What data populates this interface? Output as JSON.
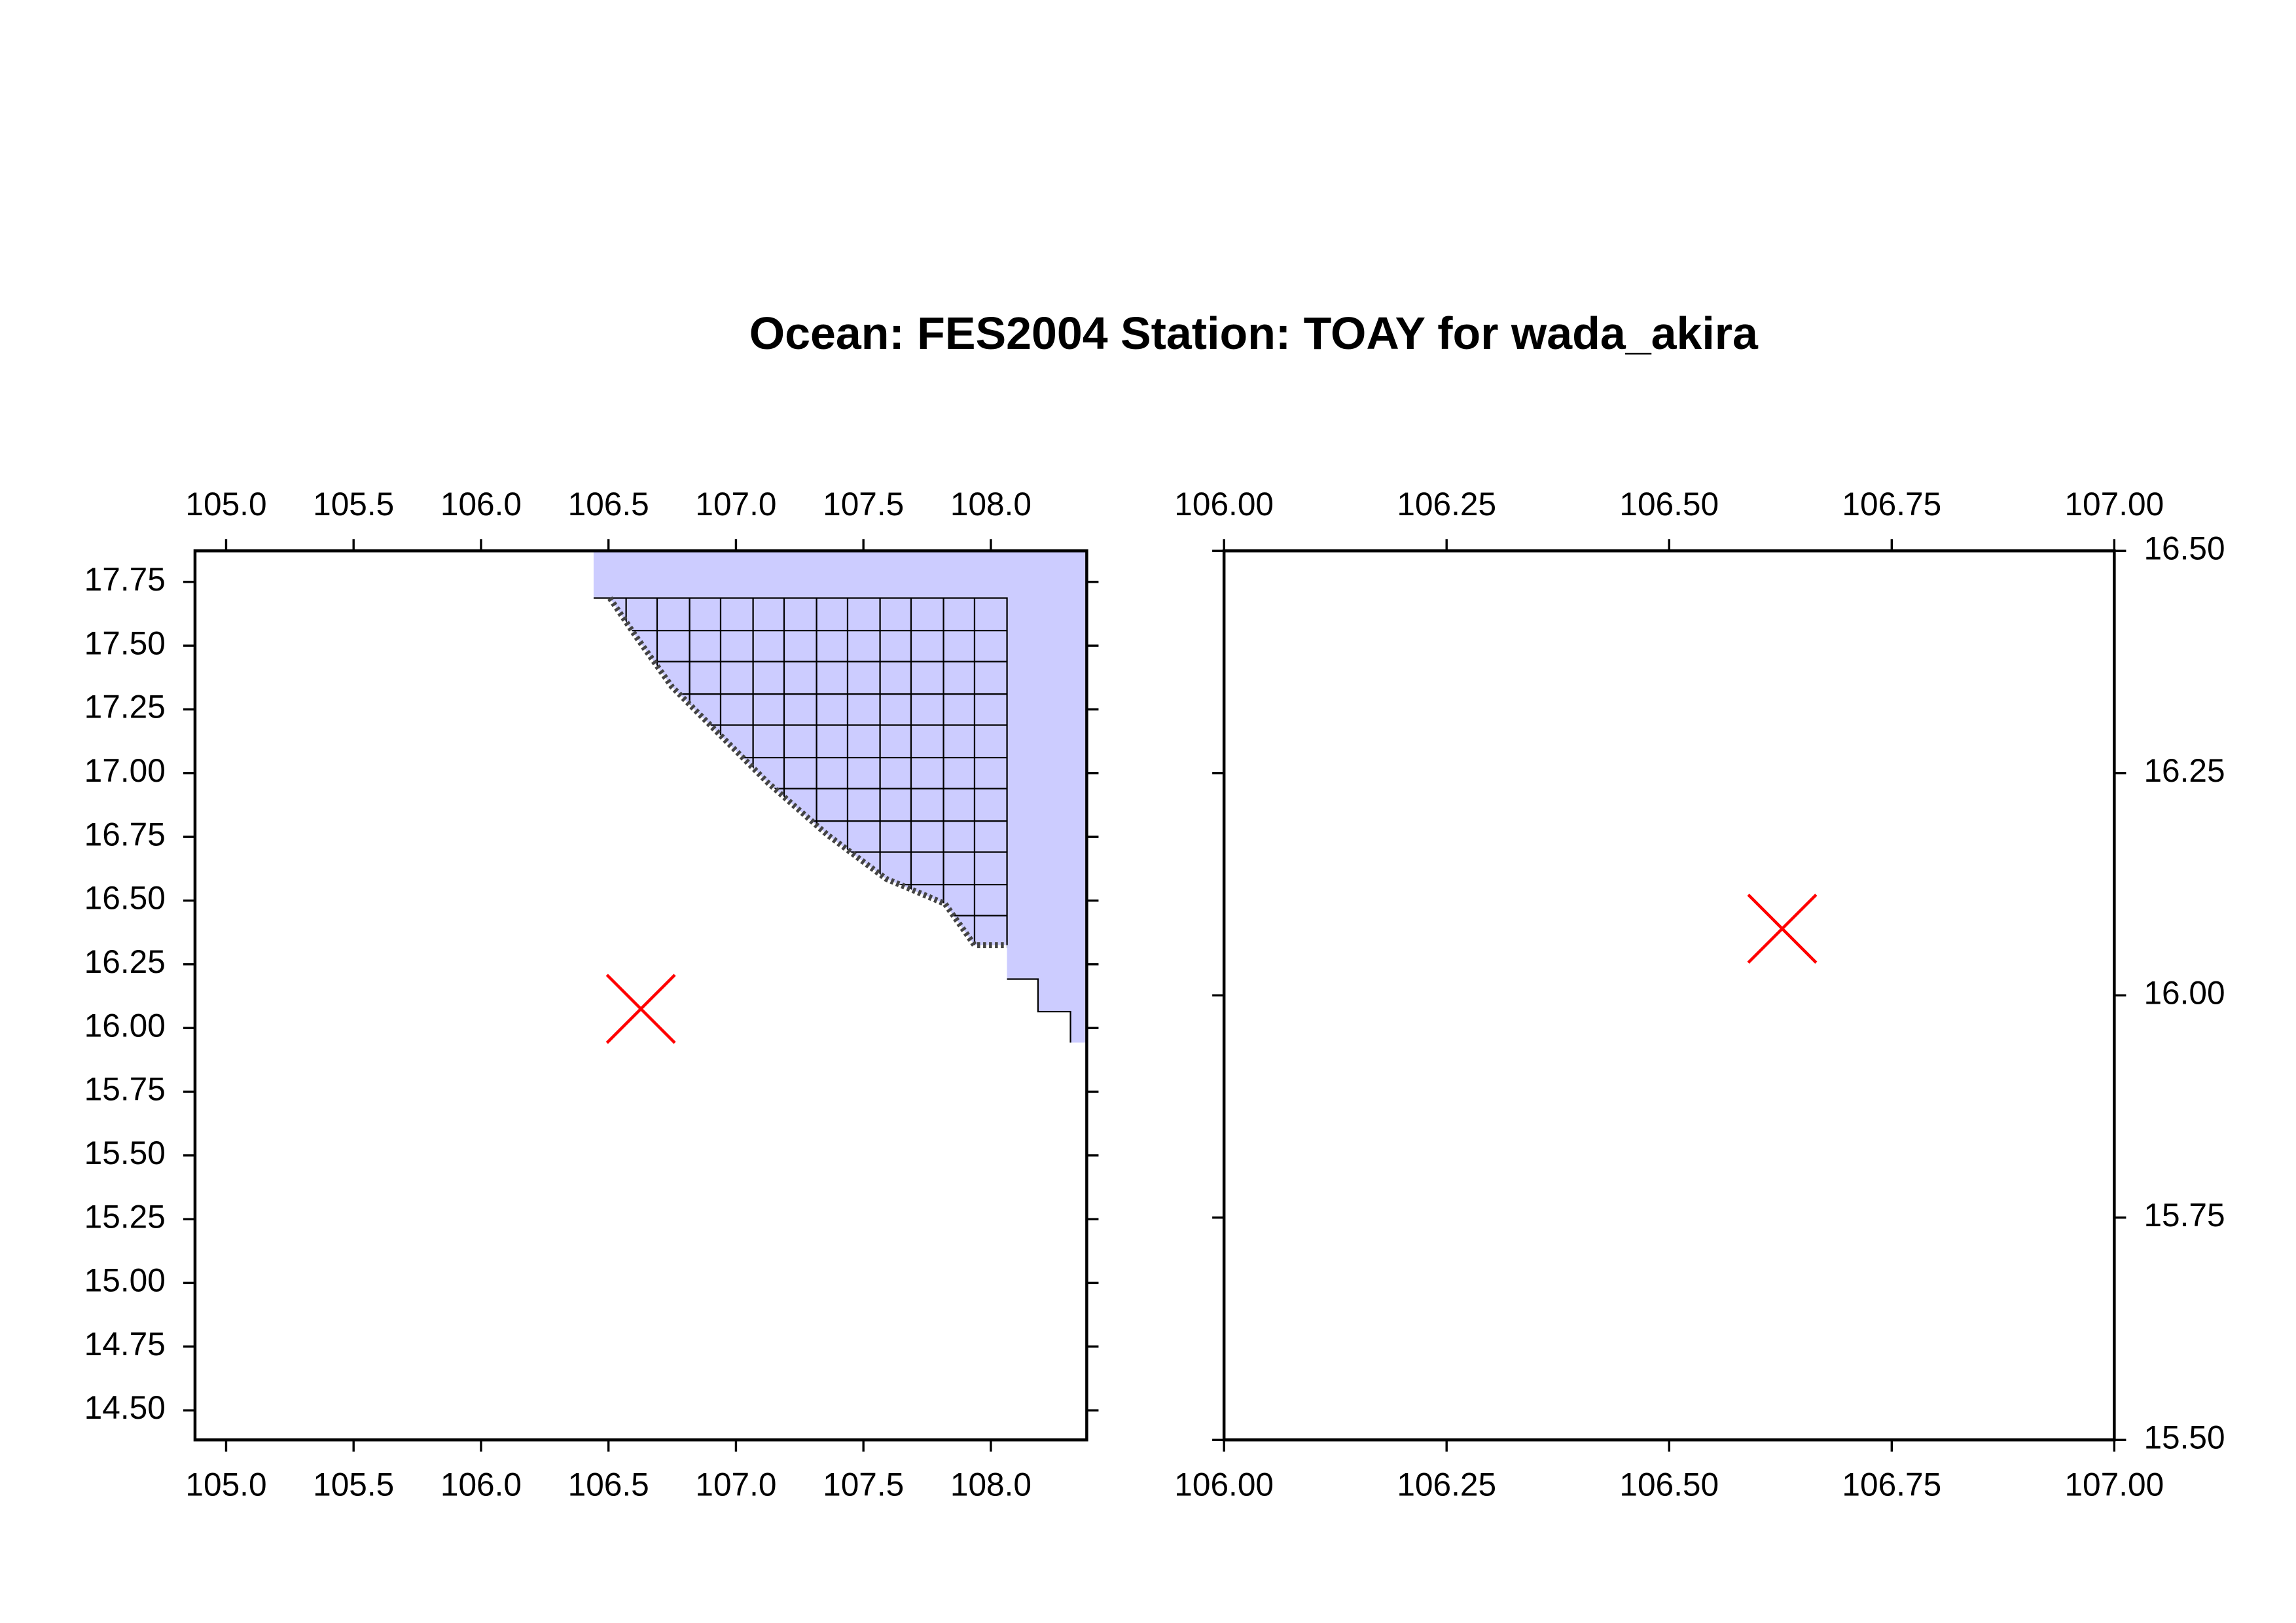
{
  "title": "Ocean: FES2004  Station: TOAY  for wada_akira",
  "chart_data": [
    {
      "type": "scatter",
      "x": [
        106.627
      ],
      "values": [
        16.075
      ],
      "color": "#ff0000",
      "xlim": [
        104.878,
        108.376
      ],
      "ylim": [
        14.384,
        17.872
      ],
      "xticks": [
        {
          "value": 105,
          "label": "105.0"
        },
        105.5,
        {
          "value": 106,
          "label": "106.0"
        },
        106.5,
        {
          "value": 107,
          "label": "107.0"
        },
        107.5,
        {
          "value": 108,
          "label": "108.0"
        }
      ],
      "yticks": [
        17.75,
        {
          "value": 17.5,
          "label": "17.50"
        },
        17.25,
        {
          "value": 17,
          "label": "17.00"
        },
        16.75,
        {
          "value": 16.5,
          "label": "16.50"
        },
        16.25,
        {
          "value": 16,
          "label": "16.00"
        },
        15.75,
        {
          "value": 15.5,
          "label": "15.50"
        },
        15.25,
        {
          "value": 15,
          "label": "15.00"
        },
        14.75,
        {
          "value": 14.5,
          "label": "14.50"
        }
      ],
      "y_label_side": "left"
    },
    {
      "type": "scatter",
      "x": [
        106.627
      ],
      "values": [
        16.075
      ],
      "color": "#ff0000",
      "xlim": [
        106,
        107
      ],
      "ylim": [
        15.5,
        16.5
      ],
      "xticks": [
        {
          "value": 106,
          "label": "106.00"
        },
        106.25,
        {
          "value": 106.5,
          "label": "106.50"
        },
        106.75,
        {
          "value": 107,
          "label": "107.00"
        }
      ],
      "yticks": [
        {
          "value": 15.5,
          "label": "15.50"
        },
        15.75,
        {
          "value": 16,
          "label": "16.00"
        },
        16.25,
        {
          "value": 16.5,
          "label": "16.50"
        }
      ],
      "y_label_side": "right"
    }
  ]
}
